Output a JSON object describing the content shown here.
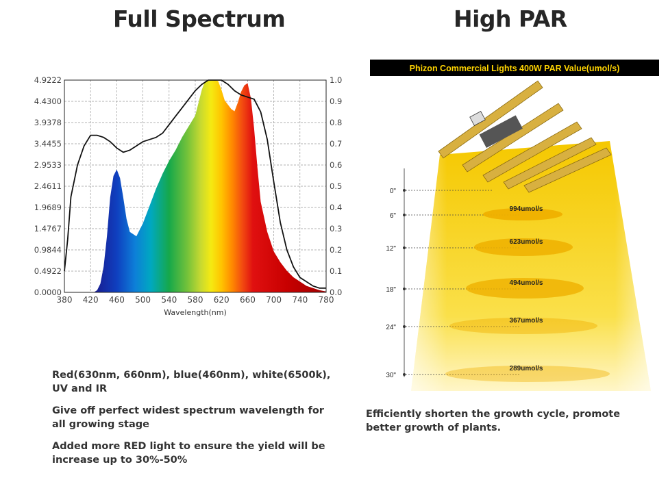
{
  "left_panel": {
    "heading": "Full Spectrum",
    "bullets": [
      "Red(630nm, 660nm), blue(460nm), white(6500k), UV and IR",
      "Give off perfect  widest spectrum wavelength for all growing stage",
      "Added more RED light to ensure the yield will be increase up to 30%-50%"
    ]
  },
  "right_panel": {
    "heading": "High PAR",
    "description": "Efficiently shorten the growth cycle, promote better growth of plants."
  },
  "colors": {
    "heading_text": "#262626",
    "par_banner_bg": "#000000",
    "par_banner_text": "#ffd400",
    "beam_yellow": "#f7d000",
    "spot_yellow": "#f0b400",
    "fixture_gold": "#d8b040"
  },
  "chart_data": [
    {
      "type": "area",
      "title": "",
      "xlabel": "Wavelength(nm)",
      "ylabel": "",
      "xlim": [
        380,
        780
      ],
      "ylim": [
        0,
        4.9222
      ],
      "y2lim": [
        0,
        1.0
      ],
      "grid": true,
      "x_ticks": [
        "380",
        "420",
        "460",
        "500",
        "540",
        "580",
        "620",
        "660",
        "700",
        "740",
        "780"
      ],
      "y_ticks": [
        "0.0000",
        "0.4922",
        "0.9844",
        "1.4767",
        "1.9689",
        "2.4611",
        "2.9533",
        "3.4455",
        "3.9378",
        "4.4300",
        "4.9222"
      ],
      "y2_ticks": [
        "0.0",
        "0.1",
        "0.2",
        "0.3",
        "0.4",
        "0.5",
        "0.6",
        "0.7",
        "0.8",
        "0.9",
        "1.0"
      ],
      "series": [
        {
          "style": "filled-spectrum",
          "x": [
            425,
            430,
            435,
            440,
            445,
            450,
            455,
            460,
            465,
            470,
            475,
            480,
            490,
            500,
            510,
            520,
            530,
            540,
            550,
            560,
            570,
            580,
            585,
            590,
            595,
            600,
            605,
            610,
            615,
            620,
            625,
            630,
            635,
            640,
            645,
            650,
            655,
            660,
            665,
            670,
            675,
            680,
            690,
            700,
            710,
            720,
            730,
            740,
            750,
            760,
            770,
            780
          ],
          "y": [
            0,
            0.05,
            0.2,
            0.6,
            1.3,
            2.2,
            2.7,
            2.85,
            2.65,
            2.2,
            1.7,
            1.4,
            1.3,
            1.6,
            2.0,
            2.4,
            2.75,
            3.05,
            3.3,
            3.6,
            3.85,
            4.1,
            4.4,
            4.7,
            4.9,
            4.92,
            4.92,
            4.92,
            4.9,
            4.7,
            4.45,
            4.35,
            4.25,
            4.2,
            4.4,
            4.65,
            4.8,
            4.85,
            4.5,
            3.8,
            2.9,
            2.1,
            1.4,
            0.95,
            0.7,
            0.5,
            0.35,
            0.25,
            0.15,
            0.1,
            0.05,
            0.02
          ]
        },
        {
          "style": "black-line",
          "x": [
            380,
            385,
            390,
            400,
            410,
            420,
            430,
            440,
            450,
            460,
            470,
            480,
            490,
            500,
            510,
            520,
            530,
            540,
            550,
            560,
            570,
            580,
            590,
            600,
            610,
            620,
            630,
            640,
            650,
            660,
            670,
            680,
            690,
            700,
            710,
            720,
            730,
            740,
            750,
            760,
            770,
            780
          ],
          "y": [
            0.1,
            0.25,
            0.45,
            0.6,
            0.69,
            0.74,
            0.74,
            0.73,
            0.71,
            0.68,
            0.66,
            0.67,
            0.69,
            0.71,
            0.72,
            0.73,
            0.75,
            0.79,
            0.83,
            0.87,
            0.91,
            0.95,
            0.98,
            1.0,
            1.0,
            1.0,
            0.98,
            0.95,
            0.93,
            0.92,
            0.91,
            0.85,
            0.72,
            0.52,
            0.33,
            0.2,
            0.12,
            0.07,
            0.05,
            0.03,
            0.02,
            0.02
          ]
        }
      ]
    },
    {
      "type": "table",
      "title": "Phizon Commercial Lights 400W PAR Value(umol/s)",
      "heights": [
        "0\"",
        "6\"",
        "12\"",
        "18\"",
        "24\"",
        "30\""
      ],
      "par_values": [
        {
          "height": "6\"",
          "label": "994umol/s",
          "value": 994
        },
        {
          "height": "12\"",
          "label": "623umol/s",
          "value": 623
        },
        {
          "height": "18\"",
          "label": "494umol/s",
          "value": 494
        },
        {
          "height": "24\"",
          "label": "367umol/s",
          "value": 367
        },
        {
          "height": "30\"",
          "label": "289umol/s",
          "value": 289
        }
      ]
    }
  ]
}
